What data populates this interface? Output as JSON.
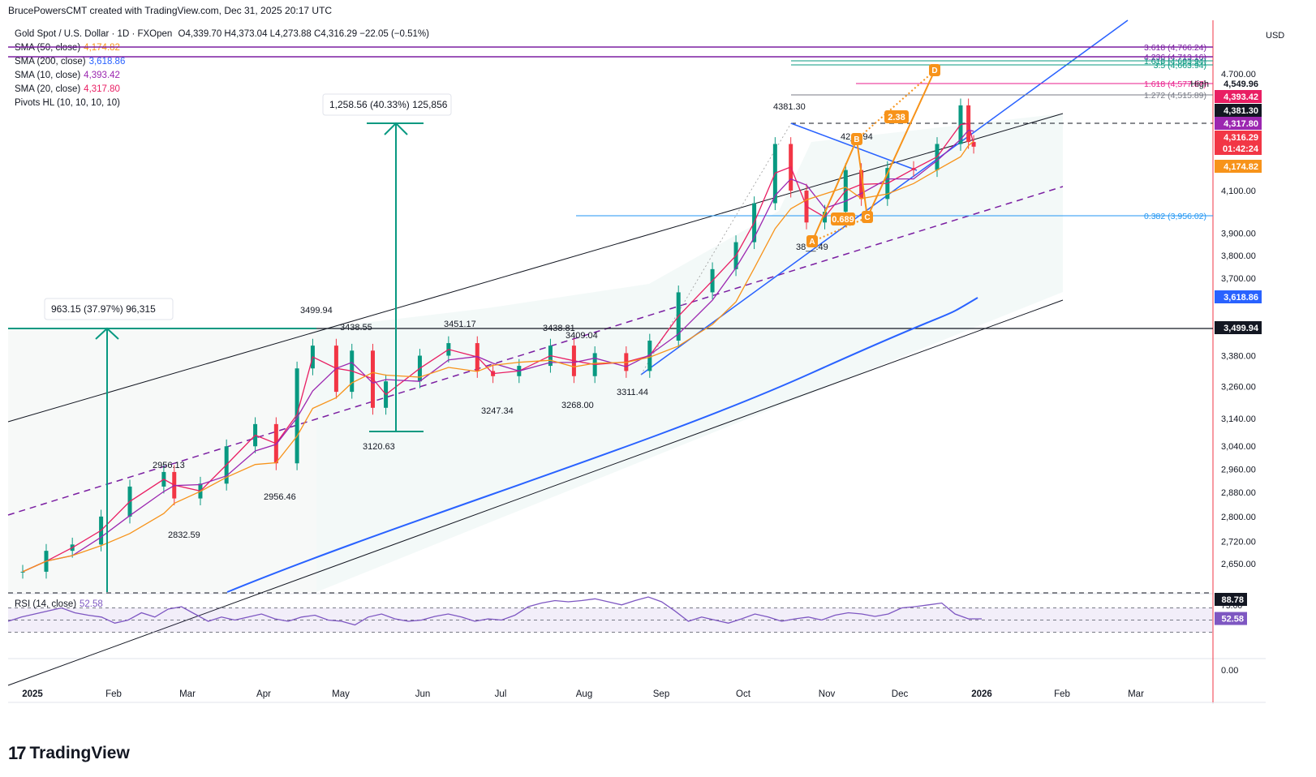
{
  "header": {
    "created_by": "BrucePowersCMT created with TradingView.com, Dec 31, 2025 20:17 UTC",
    "symbol": "Gold Spot / U.S. Dollar · 1D · FXOpen",
    "ohlc": "O4,339.70 H4,373.04 L4,273.88 C4,316.29 −22.05 (−0.51%)",
    "currency": "USD"
  },
  "legend": [
    {
      "label": "SMA (50, close)",
      "value": "4,174.82",
      "color": "#f7931a"
    },
    {
      "label": "SMA (200, close)",
      "value": "3,618.86",
      "color": "#2962ff"
    },
    {
      "label": "SMA (10, close)",
      "value": "4,393.42",
      "color": "#9c27b0"
    },
    {
      "label": "SMA (20, close)",
      "value": "4,317.80",
      "color": "#e91e63"
    },
    {
      "label": "Pivots HL (10, 10, 10, 10)",
      "value": "",
      "color": "#131722"
    }
  ],
  "chart_data": {
    "type": "candlestick",
    "yaxis_scale": "log",
    "ylim": [
      2600,
      4850
    ],
    "yticks": [
      "4,700.00",
      "4,100.00",
      "3,900.00",
      "3,800.00",
      "3,700.00",
      "3,380.00",
      "3,260.00",
      "3,140.00",
      "3,040.00",
      "2,960.00",
      "2,880.00",
      "2,800.00",
      "2,720.00",
      "2,650.00"
    ],
    "xticks": [
      "2025",
      "Feb",
      "Mar",
      "Apr",
      "May",
      "Jun",
      "Jul",
      "Aug",
      "Sep",
      "Oct",
      "Nov",
      "Dec",
      "2026",
      "Feb",
      "Mar"
    ],
    "close_series": [
      {
        "date": "2025-01-01",
        "close": 2625
      },
      {
        "date": "2025-01-10",
        "close": 2690
      },
      {
        "date": "2025-01-20",
        "close": 2710
      },
      {
        "date": "2025-01-31",
        "close": 2800
      },
      {
        "date": "2025-02-11",
        "close": 2900
      },
      {
        "date": "2025-02-24",
        "close": 2950
      },
      {
        "date": "2025-02-28",
        "close": 2860
      },
      {
        "date": "2025-03-10",
        "close": 2910
      },
      {
        "date": "2025-03-20",
        "close": 3040
      },
      {
        "date": "2025-03-31",
        "close": 3120
      },
      {
        "date": "2025-04-08",
        "close": 2980
      },
      {
        "date": "2025-04-16",
        "close": 3330
      },
      {
        "date": "2025-04-22",
        "close": 3420
      },
      {
        "date": "2025-05-01",
        "close": 3240
      },
      {
        "date": "2025-05-07",
        "close": 3400
      },
      {
        "date": "2025-05-15",
        "close": 3180
      },
      {
        "date": "2025-05-20",
        "close": 3280
      },
      {
        "date": "2025-06-02",
        "close": 3380
      },
      {
        "date": "2025-06-13",
        "close": 3430
      },
      {
        "date": "2025-06-24",
        "close": 3320
      },
      {
        "date": "2025-06-30",
        "close": 3300
      },
      {
        "date": "2025-07-10",
        "close": 3340
      },
      {
        "date": "2025-07-22",
        "close": 3420
      },
      {
        "date": "2025-07-31",
        "close": 3300
      },
      {
        "date": "2025-08-08",
        "close": 3390
      },
      {
        "date": "2025-08-20",
        "close": 3320
      },
      {
        "date": "2025-08-29",
        "close": 3440
      },
      {
        "date": "2025-09-09",
        "close": 3640
      },
      {
        "date": "2025-09-22",
        "close": 3740
      },
      {
        "date": "2025-10-01",
        "close": 3860
      },
      {
        "date": "2025-10-08",
        "close": 4040
      },
      {
        "date": "2025-10-16",
        "close": 4330
      },
      {
        "date": "2025-10-22",
        "close": 4100
      },
      {
        "date": "2025-10-28",
        "close": 3950
      },
      {
        "date": "2025-11-04",
        "close": 4000
      },
      {
        "date": "2025-11-12",
        "close": 4200
      },
      {
        "date": "2025-11-18",
        "close": 4060
      },
      {
        "date": "2025-11-28",
        "close": 4210
      },
      {
        "date": "2025-12-08",
        "close": 4200
      },
      {
        "date": "2025-12-17",
        "close": 4330
      },
      {
        "date": "2025-12-26",
        "close": 4530
      },
      {
        "date": "2025-12-29",
        "close": 4340
      },
      {
        "date": "2025-12-31",
        "close": 4316.29
      }
    ],
    "sma_50_last": 4174.82,
    "sma_200_last": 3618.86,
    "sma_10_last": 4393.42,
    "sma_20_last": 4317.8,
    "pivot_labels": [
      "4381.30",
      "3499.94",
      "3438.55",
      "3451.17",
      "3438.81",
      "3409.04",
      "3311.44",
      "3268.00",
      "3247.34",
      "3120.63",
      "2956.13",
      "2956.46",
      "2832.59",
      "38__.49",
      "42__.94"
    ],
    "measure_boxes": [
      {
        "text": "963.15 (37.97%) 96,315"
      },
      {
        "text": "1,258.56 (40.33%) 125,856"
      }
    ],
    "fib_levels": [
      {
        "label": "3.618 (4,766.24)",
        "color": "#7b1fa2"
      },
      {
        "label": "4.236 (4,713.16)",
        "color": "#7b1fa2"
      },
      {
        "label": "1.618 (4,683.94)",
        "color": "#089981"
      },
      {
        "label": "3.5 (4,663.94)",
        "color": "#089981"
      },
      {
        "label": "1.618 (4,577.87)",
        "color": "#e91e8c"
      },
      {
        "label": "1.272 (4,515.89)",
        "color": "#787b86"
      },
      {
        "label": "0.382 (3,956.02)",
        "color": "#2196f3"
      }
    ],
    "harmonic": {
      "points": [
        "A",
        "B",
        "C",
        "D"
      ],
      "ratios": [
        "2.38",
        "0.689"
      ]
    },
    "price_labels": [
      {
        "text": "High",
        "value": "4,549.96",
        "bg": "#ffffff",
        "fg": "#131722"
      },
      {
        "text": "",
        "value": "4,393.42",
        "bg": "#e91e63",
        "fg": "#ffffff"
      },
      {
        "text": "",
        "value": "4,381.30",
        "bg": "#131722",
        "fg": "#ffffff"
      },
      {
        "text": "",
        "value": "4,317.80",
        "bg": "#9c27b0",
        "fg": "#ffffff"
      },
      {
        "text": "",
        "value": "4,316.29",
        "bg": "#f23645",
        "fg": "#ffffff"
      },
      {
        "text": "",
        "value": "01:42:24",
        "bg": "#f23645",
        "fg": "#ffffff"
      },
      {
        "text": "",
        "value": "4,174.82",
        "bg": "#f7931a",
        "fg": "#ffffff"
      },
      {
        "text": "",
        "value": "3,618.86",
        "bg": "#2962ff",
        "fg": "#ffffff"
      },
      {
        "text": "",
        "value": "3,499.94",
        "bg": "#131722",
        "fg": "#ffffff"
      }
    ],
    "rsi": {
      "label": "RSI (14, close)",
      "value": "52.58",
      "upper_tag": "88.78",
      "ticks": [
        "75.00",
        "0.00"
      ],
      "values": [
        48,
        55,
        60,
        65,
        70,
        62,
        58,
        55,
        45,
        50,
        62,
        55,
        68,
        72,
        60,
        48,
        55,
        50,
        55,
        60,
        52,
        48,
        55,
        58,
        50,
        48,
        42,
        55,
        60,
        52,
        48,
        50,
        56,
        60,
        55,
        48,
        52,
        50,
        58,
        72,
        78,
        82,
        80,
        82,
        85,
        80,
        75,
        82,
        88,
        80,
        65,
        48,
        55,
        50,
        45,
        52,
        60,
        55,
        48,
        52,
        55,
        50,
        58,
        62,
        60,
        56,
        60,
        70,
        72,
        75,
        78,
        60,
        52,
        52
      ]
    }
  },
  "branding": {
    "name": "TradingView"
  }
}
